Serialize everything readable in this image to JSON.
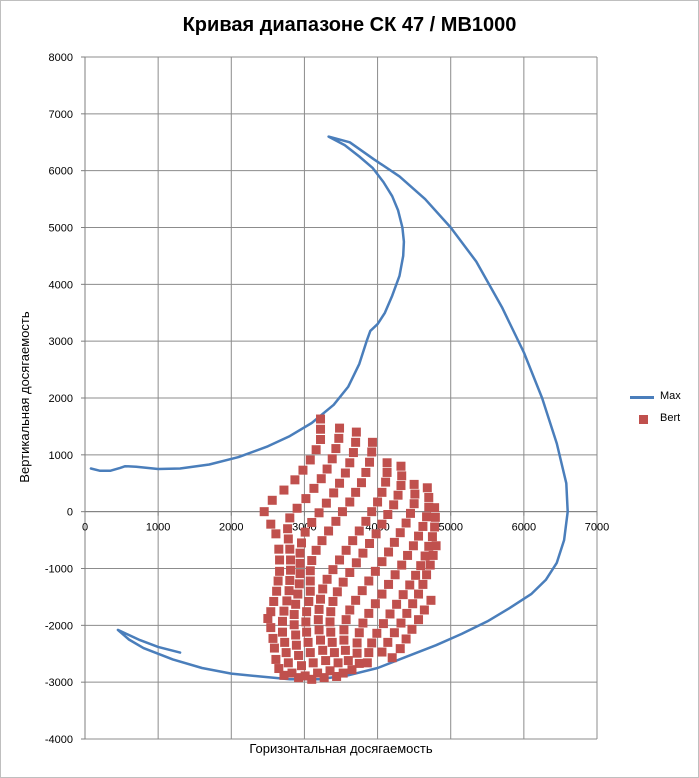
{
  "chart_data": {
    "type": "scatter",
    "title": "Кривая диапазоне СК 47 / MB1000",
    "xlabel": "Горизонтальная досягаемость",
    "ylabel": "Вертикальная досягаемость",
    "xlim": [
      0,
      7000
    ],
    "ylim": [
      -4000,
      8000
    ],
    "xticks": [
      0,
      1000,
      2000,
      3000,
      4000,
      5000,
      6000,
      7000
    ],
    "yticks": [
      -4000,
      -3000,
      -2000,
      -1000,
      0,
      1000,
      2000,
      3000,
      4000,
      5000,
      6000,
      7000,
      8000
    ],
    "grid": true,
    "legend_position": "right",
    "series": [
      {
        "name": "Max",
        "kind": "line",
        "color": "#4a7ebb",
        "points": [
          [
            80,
            760
          ],
          [
            200,
            720
          ],
          [
            350,
            720
          ],
          [
            480,
            770
          ],
          [
            550,
            800
          ],
          [
            700,
            790
          ],
          [
            1000,
            750
          ],
          [
            1300,
            760
          ],
          [
            1700,
            830
          ],
          [
            2100,
            960
          ],
          [
            2500,
            1150
          ],
          [
            2800,
            1330
          ],
          [
            3100,
            1560
          ],
          [
            3400,
            1880
          ],
          [
            3600,
            2200
          ],
          [
            3750,
            2600
          ],
          [
            3850,
            3000
          ],
          [
            3900,
            3180
          ],
          [
            4000,
            3300
          ],
          [
            4100,
            3500
          ],
          [
            4200,
            3800
          ],
          [
            4300,
            4150
          ],
          [
            4350,
            4500
          ],
          [
            4360,
            4750
          ],
          [
            4340,
            5000
          ],
          [
            4280,
            5300
          ],
          [
            4200,
            5550
          ],
          [
            4080,
            5800
          ],
          [
            3930,
            6050
          ],
          [
            3750,
            6250
          ],
          [
            3550,
            6450
          ],
          [
            3330,
            6600
          ],
          [
            3620,
            6500
          ],
          [
            3950,
            6200
          ],
          [
            4300,
            5900
          ],
          [
            4650,
            5500
          ],
          [
            5000,
            5000
          ],
          [
            5350,
            4400
          ],
          [
            5700,
            3600
          ],
          [
            6000,
            2800
          ],
          [
            6250,
            2000
          ],
          [
            6450,
            1200
          ],
          [
            6580,
            500
          ],
          [
            6600,
            0
          ],
          [
            6550,
            -500
          ],
          [
            6450,
            -900
          ],
          [
            6300,
            -1200
          ],
          [
            6100,
            -1450
          ],
          [
            5800,
            -1700
          ],
          [
            5500,
            -1930
          ],
          [
            5150,
            -2150
          ],
          [
            4800,
            -2350
          ],
          [
            4400,
            -2550
          ],
          [
            4000,
            -2750
          ],
          [
            3600,
            -2880
          ],
          [
            3200,
            -2950
          ],
          [
            2800,
            -2950
          ],
          [
            2400,
            -2900
          ],
          [
            2000,
            -2850
          ],
          [
            1600,
            -2750
          ],
          [
            1200,
            -2600
          ],
          [
            800,
            -2400
          ],
          [
            600,
            -2250
          ],
          [
            450,
            -2080
          ],
          [
            750,
            -2260
          ],
          [
            1000,
            -2380
          ],
          [
            1300,
            -2480
          ]
        ]
      },
      {
        "name": "Bert",
        "kind": "scatter",
        "color": "#c0504d",
        "points": [
          [
            3220,
            1630
          ],
          [
            3220,
            1450
          ],
          [
            3220,
            1270
          ],
          [
            3160,
            1090
          ],
          [
            3080,
            910
          ],
          [
            2980,
            730
          ],
          [
            2870,
            560
          ],
          [
            2720,
            380
          ],
          [
            2560,
            200
          ],
          [
            2450,
            0
          ],
          [
            2540,
            -220
          ],
          [
            2610,
            -390
          ],
          [
            2650,
            -660
          ],
          [
            2660,
            -850
          ],
          [
            2660,
            -1050
          ],
          [
            2640,
            -1220
          ],
          [
            2620,
            -1400
          ],
          [
            2580,
            -1580
          ],
          [
            2540,
            -1760
          ],
          [
            2500,
            -1880
          ],
          [
            2540,
            -2040
          ],
          [
            2570,
            -2230
          ],
          [
            2590,
            -2400
          ],
          [
            2610,
            -2600
          ],
          [
            2650,
            -2760
          ],
          [
            2720,
            -2880
          ],
          [
            3480,
            1470
          ],
          [
            3470,
            1290
          ],
          [
            3430,
            1110
          ],
          [
            3380,
            930
          ],
          [
            3310,
            750
          ],
          [
            3230,
            580
          ],
          [
            3130,
            410
          ],
          [
            3020,
            230
          ],
          [
            2900,
            60
          ],
          [
            2800,
            -110
          ],
          [
            2770,
            -300
          ],
          [
            2780,
            -480
          ],
          [
            2800,
            -660
          ],
          [
            2810,
            -850
          ],
          [
            2810,
            -1030
          ],
          [
            2800,
            -1210
          ],
          [
            2790,
            -1390
          ],
          [
            2760,
            -1570
          ],
          [
            2720,
            -1750
          ],
          [
            2700,
            -1930
          ],
          [
            2700,
            -2120
          ],
          [
            2730,
            -2300
          ],
          [
            2750,
            -2480
          ],
          [
            2780,
            -2660
          ],
          [
            2830,
            -2840
          ],
          [
            2920,
            -2920
          ],
          [
            3710,
            1400
          ],
          [
            3700,
            1220
          ],
          [
            3670,
            1040
          ],
          [
            3620,
            860
          ],
          [
            3560,
            680
          ],
          [
            3480,
            500
          ],
          [
            3400,
            330
          ],
          [
            3300,
            150
          ],
          [
            3200,
            -20
          ],
          [
            3100,
            -190
          ],
          [
            3010,
            -360
          ],
          [
            2960,
            -550
          ],
          [
            2940,
            -730
          ],
          [
            2940,
            -910
          ],
          [
            2940,
            -1090
          ],
          [
            2930,
            -1270
          ],
          [
            2910,
            -1450
          ],
          [
            2880,
            -1630
          ],
          [
            2860,
            -1810
          ],
          [
            2860,
            -1990
          ],
          [
            2880,
            -2170
          ],
          [
            2890,
            -2350
          ],
          [
            2920,
            -2530
          ],
          [
            2960,
            -2710
          ],
          [
            3010,
            -2890
          ],
          [
            3100,
            -2950
          ],
          [
            3930,
            1220
          ],
          [
            3920,
            1050
          ],
          [
            3890,
            870
          ],
          [
            3840,
            690
          ],
          [
            3780,
            510
          ],
          [
            3700,
            340
          ],
          [
            3620,
            170
          ],
          [
            3520,
            0
          ],
          [
            3430,
            -170
          ],
          [
            3330,
            -340
          ],
          [
            3240,
            -510
          ],
          [
            3160,
            -680
          ],
          [
            3100,
            -860
          ],
          [
            3080,
            -1040
          ],
          [
            3080,
            -1220
          ],
          [
            3080,
            -1400
          ],
          [
            3060,
            -1580
          ],
          [
            3030,
            -1760
          ],
          [
            3020,
            -1940
          ],
          [
            3030,
            -2120
          ],
          [
            3050,
            -2300
          ],
          [
            3080,
            -2480
          ],
          [
            3120,
            -2660
          ],
          [
            3180,
            -2840
          ],
          [
            3270,
            -2920
          ],
          [
            4130,
            860
          ],
          [
            4130,
            690
          ],
          [
            4110,
            520
          ],
          [
            4060,
            340
          ],
          [
            4000,
            170
          ],
          [
            3920,
            0
          ],
          [
            3840,
            -170
          ],
          [
            3750,
            -340
          ],
          [
            3660,
            -510
          ],
          [
            3570,
            -680
          ],
          [
            3480,
            -850
          ],
          [
            3390,
            -1020
          ],
          [
            3310,
            -1190
          ],
          [
            3250,
            -1360
          ],
          [
            3220,
            -1540
          ],
          [
            3200,
            -1720
          ],
          [
            3190,
            -1900
          ],
          [
            3200,
            -2080
          ],
          [
            3220,
            -2260
          ],
          [
            3250,
            -2440
          ],
          [
            3290,
            -2620
          ],
          [
            3350,
            -2800
          ],
          [
            3440,
            -2900
          ],
          [
            4320,
            800
          ],
          [
            4330,
            630
          ],
          [
            4320,
            460
          ],
          [
            4280,
            290
          ],
          [
            4220,
            120
          ],
          [
            4140,
            -50
          ],
          [
            4060,
            -220
          ],
          [
            3980,
            -390
          ],
          [
            3890,
            -560
          ],
          [
            3800,
            -730
          ],
          [
            3710,
            -900
          ],
          [
            3620,
            -1070
          ],
          [
            3530,
            -1240
          ],
          [
            3450,
            -1410
          ],
          [
            3390,
            -1580
          ],
          [
            3360,
            -1760
          ],
          [
            3350,
            -1940
          ],
          [
            3360,
            -2120
          ],
          [
            3380,
            -2300
          ],
          [
            3410,
            -2480
          ],
          [
            3460,
            -2660
          ],
          [
            3530,
            -2840
          ],
          [
            4500,
            480
          ],
          [
            4510,
            310
          ],
          [
            4500,
            140
          ],
          [
            4450,
            -30
          ],
          [
            4390,
            -200
          ],
          [
            4310,
            -370
          ],
          [
            4230,
            -540
          ],
          [
            4150,
            -710
          ],
          [
            4060,
            -880
          ],
          [
            3970,
            -1050
          ],
          [
            3880,
            -1220
          ],
          [
            3790,
            -1390
          ],
          [
            3700,
            -1560
          ],
          [
            3620,
            -1730
          ],
          [
            3570,
            -1900
          ],
          [
            3540,
            -2080
          ],
          [
            3540,
            -2260
          ],
          [
            3560,
            -2440
          ],
          [
            3600,
            -2620
          ],
          [
            3650,
            -2780
          ],
          [
            4680,
            420
          ],
          [
            4700,
            250
          ],
          [
            4700,
            80
          ],
          [
            4670,
            -90
          ],
          [
            4620,
            -260
          ],
          [
            4560,
            -430
          ],
          [
            4490,
            -600
          ],
          [
            4410,
            -770
          ],
          [
            4330,
            -940
          ],
          [
            4240,
            -1110
          ],
          [
            4150,
            -1280
          ],
          [
            4060,
            -1450
          ],
          [
            3970,
            -1620
          ],
          [
            3880,
            -1790
          ],
          [
            3800,
            -1960
          ],
          [
            3750,
            -2130
          ],
          [
            3720,
            -2310
          ],
          [
            3720,
            -2490
          ],
          [
            3750,
            -2670
          ],
          [
            4780,
            70
          ],
          [
            4790,
            -100
          ],
          [
            4780,
            -270
          ],
          [
            4750,
            -440
          ],
          [
            4700,
            -610
          ],
          [
            4650,
            -780
          ],
          [
            4590,
            -950
          ],
          [
            4520,
            -1120
          ],
          [
            4440,
            -1290
          ],
          [
            4350,
            -1460
          ],
          [
            4260,
            -1630
          ],
          [
            4170,
            -1800
          ],
          [
            4080,
            -1970
          ],
          [
            3990,
            -2140
          ],
          [
            3920,
            -2310
          ],
          [
            3880,
            -2480
          ],
          [
            3860,
            -2660
          ],
          [
            4800,
            -600
          ],
          [
            4760,
            -770
          ],
          [
            4720,
            -940
          ],
          [
            4670,
            -1110
          ],
          [
            4620,
            -1280
          ],
          [
            4560,
            -1450
          ],
          [
            4480,
            -1620
          ],
          [
            4400,
            -1790
          ],
          [
            4320,
            -1960
          ],
          [
            4230,
            -2130
          ],
          [
            4140,
            -2300
          ],
          [
            4060,
            -2470
          ],
          [
            4730,
            -1560
          ],
          [
            4640,
            -1730
          ],
          [
            4560,
            -1900
          ],
          [
            4470,
            -2070
          ],
          [
            4390,
            -2240
          ],
          [
            4310,
            -2410
          ],
          [
            4200,
            -2570
          ]
        ]
      }
    ]
  }
}
